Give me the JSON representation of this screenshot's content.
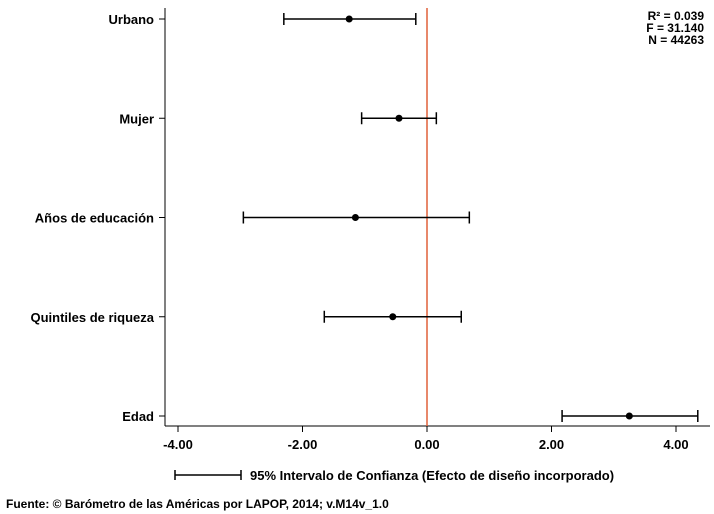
{
  "chart_data": {
    "type": "coefficient-plot",
    "orientation": "horizontal",
    "categories": [
      "Urbano",
      "Mujer",
      "Años de educación",
      "Quintiles de riqueza",
      "Edad"
    ],
    "series": [
      {
        "estimates": [
          -1.25,
          -0.45,
          -1.15,
          -0.55,
          3.25
        ],
        "ci_low": [
          -2.3,
          -1.05,
          -2.95,
          -1.65,
          2.17
        ],
        "ci_high": [
          -0.18,
          0.15,
          0.68,
          0.55,
          4.35
        ]
      }
    ],
    "xlim": [
      -4.2,
      4.6
    ],
    "xticks": [
      -4,
      -2,
      0,
      2,
      4
    ],
    "xtick_labels": [
      "-4.00",
      "-2.00",
      "0.00",
      "2.00",
      "4.00"
    ],
    "reference_line": {
      "x": 0,
      "color": "#e0603a"
    },
    "stats": [
      "R² = 0.039",
      "F = 31.140",
      "N = 44263"
    ],
    "legend": {
      "label": "95% Intervalo de Confianza (Efecto de diseño incorporado)",
      "placement": "bottom"
    },
    "colors": {
      "marks": "#000000",
      "reference": "#e0603a"
    }
  },
  "source": "Fuente: © Barómetro de las Américas por LAPOP, 2014; v.M14v_1.0"
}
